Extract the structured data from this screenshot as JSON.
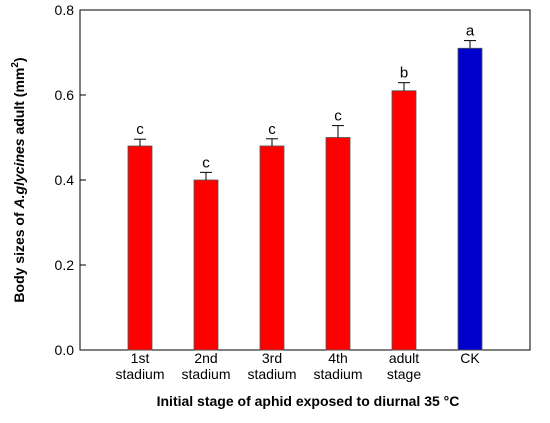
{
  "chart_data": {
    "type": "bar",
    "title": "",
    "xlabel": "Initial stage of aphid exposed to diurnal 35 °C",
    "ylabel": {
      "prefix": "Body sizes of ",
      "species": "A.glycines",
      "middle": " adult (mm",
      "superscript": "2",
      "suffix": ")"
    },
    "ylim": [
      0,
      0.8
    ],
    "yticks": [
      "0.0",
      "0.2",
      "0.4",
      "0.6",
      "0.8"
    ],
    "ytick_values": [
      0,
      0.2,
      0.4,
      0.6,
      0.8
    ],
    "categories": [
      [
        "1st",
        "stadium"
      ],
      [
        "2nd",
        "stadium"
      ],
      [
        "3rd",
        "stadium"
      ],
      [
        "4th",
        "stadium"
      ],
      [
        "adult",
        "stage"
      ],
      [
        "CK"
      ]
    ],
    "values": [
      0.48,
      0.4,
      0.48,
      0.5,
      0.61,
      0.71
    ],
    "errors": [
      0.016,
      0.018,
      0.017,
      0.028,
      0.019,
      0.018
    ],
    "significance": [
      "c",
      "c",
      "c",
      "c",
      "b",
      "a"
    ],
    "bar_colors": [
      "#ff0000",
      "#ff0000",
      "#ff0000",
      "#ff0000",
      "#ff0000",
      "#0000cc"
    ],
    "grid": false,
    "legend": "none"
  }
}
